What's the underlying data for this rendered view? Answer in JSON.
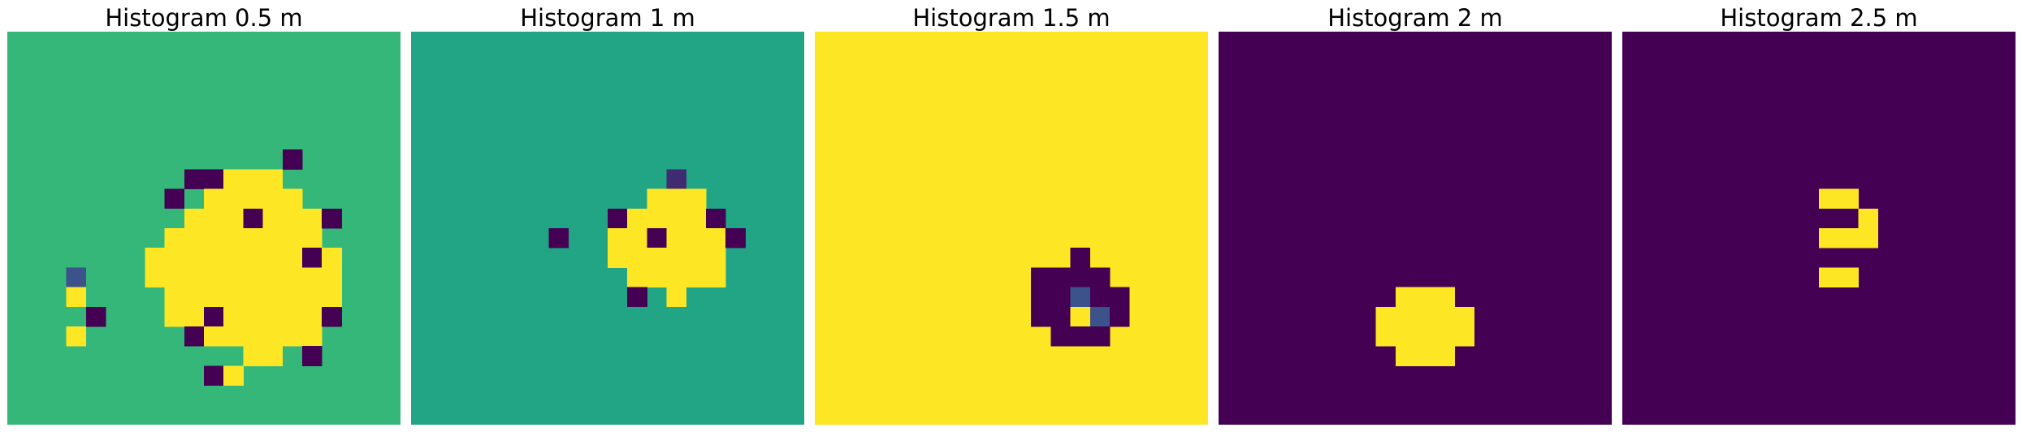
{
  "chart_data": [
    {
      "type": "heatmap",
      "title": "Histogram 0.5 m",
      "grid": false,
      "axes_visible": false,
      "colormap": "viridis",
      "colors": {
        "background": "#35b779",
        "high": "#fde725",
        "low": "#440154",
        "mid": "#3b528b"
      },
      "background_value": 0.7,
      "grid_size": [
        20,
        20
      ],
      "cells": [
        {
          "row": 6,
          "col": 14,
          "value": 0
        },
        {
          "row": 7,
          "col": 9,
          "value": 0
        },
        {
          "row": 7,
          "col": 10,
          "value": 0
        },
        {
          "row": 7,
          "col": 11,
          "value": 1
        },
        {
          "row": 7,
          "col": 12,
          "value": 1
        },
        {
          "row": 7,
          "col": 13,
          "value": 1
        },
        {
          "row": 8,
          "col": 8,
          "value": 0
        },
        {
          "row": 8,
          "col": 10,
          "value": 1
        },
        {
          "row": 8,
          "col": 11,
          "value": 1
        },
        {
          "row": 8,
          "col": 12,
          "value": 1
        },
        {
          "row": 8,
          "col": 13,
          "value": 1
        },
        {
          "row": 8,
          "col": 14,
          "value": 1
        },
        {
          "row": 9,
          "col": 9,
          "value": 1
        },
        {
          "row": 9,
          "col": 10,
          "value": 1
        },
        {
          "row": 9,
          "col": 11,
          "value": 1
        },
        {
          "row": 9,
          "col": 12,
          "value": 0
        },
        {
          "row": 9,
          "col": 13,
          "value": 1
        },
        {
          "row": 9,
          "col": 14,
          "value": 1
        },
        {
          "row": 9,
          "col": 15,
          "value": 1
        },
        {
          "row": 9,
          "col": 16,
          "value": 0
        },
        {
          "row": 10,
          "col": 8,
          "value": 1
        },
        {
          "row": 10,
          "col": 9,
          "value": 1
        },
        {
          "row": 10,
          "col": 10,
          "value": 1
        },
        {
          "row": 10,
          "col": 11,
          "value": 1
        },
        {
          "row": 10,
          "col": 12,
          "value": 1
        },
        {
          "row": 10,
          "col": 13,
          "value": 1
        },
        {
          "row": 10,
          "col": 14,
          "value": 1
        },
        {
          "row": 10,
          "col": 15,
          "value": 1
        },
        {
          "row": 11,
          "col": 7,
          "value": 1
        },
        {
          "row": 11,
          "col": 8,
          "value": 1
        },
        {
          "row": 11,
          "col": 9,
          "value": 1
        },
        {
          "row": 11,
          "col": 10,
          "value": 1
        },
        {
          "row": 11,
          "col": 11,
          "value": 1
        },
        {
          "row": 11,
          "col": 12,
          "value": 1
        },
        {
          "row": 11,
          "col": 13,
          "value": 1
        },
        {
          "row": 11,
          "col": 14,
          "value": 1
        },
        {
          "row": 11,
          "col": 15,
          "value": 0
        },
        {
          "row": 11,
          "col": 16,
          "value": 1
        },
        {
          "row": 12,
          "col": 3,
          "value": 0.2
        },
        {
          "row": 12,
          "col": 7,
          "value": 1
        },
        {
          "row": 12,
          "col": 8,
          "value": 1
        },
        {
          "row": 12,
          "col": 9,
          "value": 1
        },
        {
          "row": 12,
          "col": 10,
          "value": 1
        },
        {
          "row": 12,
          "col": 11,
          "value": 1
        },
        {
          "row": 12,
          "col": 12,
          "value": 1
        },
        {
          "row": 12,
          "col": 13,
          "value": 1
        },
        {
          "row": 12,
          "col": 14,
          "value": 1
        },
        {
          "row": 12,
          "col": 15,
          "value": 1
        },
        {
          "row": 12,
          "col": 16,
          "value": 1
        },
        {
          "row": 13,
          "col": 3,
          "value": 1
        },
        {
          "row": 13,
          "col": 8,
          "value": 1
        },
        {
          "row": 13,
          "col": 9,
          "value": 1
        },
        {
          "row": 13,
          "col": 10,
          "value": 1
        },
        {
          "row": 13,
          "col": 11,
          "value": 1
        },
        {
          "row": 13,
          "col": 12,
          "value": 1
        },
        {
          "row": 13,
          "col": 13,
          "value": 1
        },
        {
          "row": 13,
          "col": 14,
          "value": 1
        },
        {
          "row": 13,
          "col": 15,
          "value": 1
        },
        {
          "row": 13,
          "col": 16,
          "value": 1
        },
        {
          "row": 14,
          "col": 4,
          "value": 0
        },
        {
          "row": 14,
          "col": 8,
          "value": 1
        },
        {
          "row": 14,
          "col": 9,
          "value": 1
        },
        {
          "row": 14,
          "col": 10,
          "value": 0
        },
        {
          "row": 14,
          "col": 11,
          "value": 1
        },
        {
          "row": 14,
          "col": 12,
          "value": 1
        },
        {
          "row": 14,
          "col": 13,
          "value": 1
        },
        {
          "row": 14,
          "col": 14,
          "value": 1
        },
        {
          "row": 14,
          "col": 15,
          "value": 1
        },
        {
          "row": 14,
          "col": 16,
          "value": 0
        },
        {
          "row": 15,
          "col": 3,
          "value": 1
        },
        {
          "row": 15,
          "col": 9,
          "value": 0
        },
        {
          "row": 15,
          "col": 10,
          "value": 1
        },
        {
          "row": 15,
          "col": 11,
          "value": 1
        },
        {
          "row": 15,
          "col": 12,
          "value": 1
        },
        {
          "row": 15,
          "col": 13,
          "value": 1
        },
        {
          "row": 15,
          "col": 14,
          "value": 1
        },
        {
          "row": 15,
          "col": 15,
          "value": 1
        },
        {
          "row": 16,
          "col": 12,
          "value": 1
        },
        {
          "row": 16,
          "col": 13,
          "value": 1
        },
        {
          "row": 16,
          "col": 15,
          "value": 0
        },
        {
          "row": 17,
          "col": 10,
          "value": 0
        },
        {
          "row": 17,
          "col": 11,
          "value": 1
        }
      ]
    },
    {
      "type": "heatmap",
      "title": "Histogram 1 m",
      "grid": false,
      "axes_visible": false,
      "colormap": "viridis",
      "colors": {
        "background": "#21a585",
        "high": "#fde725",
        "low": "#440154",
        "mid": "#443a83"
      },
      "background_value": 0.6,
      "grid_size": [
        20,
        20
      ],
      "cells": [
        {
          "row": 7,
          "col": 13,
          "value": 0.1
        },
        {
          "row": 8,
          "col": 12,
          "value": 1
        },
        {
          "row": 8,
          "col": 13,
          "value": 1
        },
        {
          "row": 8,
          "col": 14,
          "value": 1
        },
        {
          "row": 9,
          "col": 10,
          "value": 0
        },
        {
          "row": 9,
          "col": 11,
          "value": 1
        },
        {
          "row": 9,
          "col": 12,
          "value": 1
        },
        {
          "row": 9,
          "col": 13,
          "value": 1
        },
        {
          "row": 9,
          "col": 14,
          "value": 1
        },
        {
          "row": 9,
          "col": 15,
          "value": 0
        },
        {
          "row": 10,
          "col": 7,
          "value": 0
        },
        {
          "row": 10,
          "col": 10,
          "value": 1
        },
        {
          "row": 10,
          "col": 11,
          "value": 1
        },
        {
          "row": 10,
          "col": 12,
          "value": 0
        },
        {
          "row": 10,
          "col": 13,
          "value": 1
        },
        {
          "row": 10,
          "col": 14,
          "value": 1
        },
        {
          "row": 10,
          "col": 15,
          "value": 1
        },
        {
          "row": 10,
          "col": 16,
          "value": 0
        },
        {
          "row": 11,
          "col": 10,
          "value": 1
        },
        {
          "row": 11,
          "col": 11,
          "value": 1
        },
        {
          "row": 11,
          "col": 12,
          "value": 1
        },
        {
          "row": 11,
          "col": 13,
          "value": 1
        },
        {
          "row": 11,
          "col": 14,
          "value": 1
        },
        {
          "row": 11,
          "col": 15,
          "value": 1
        },
        {
          "row": 12,
          "col": 11,
          "value": 1
        },
        {
          "row": 12,
          "col": 12,
          "value": 1
        },
        {
          "row": 12,
          "col": 13,
          "value": 1
        },
        {
          "row": 12,
          "col": 14,
          "value": 1
        },
        {
          "row": 12,
          "col": 15,
          "value": 1
        },
        {
          "row": 13,
          "col": 11,
          "value": 0
        },
        {
          "row": 13,
          "col": 13,
          "value": 1
        }
      ]
    },
    {
      "type": "heatmap",
      "title": "Histogram 1.5 m",
      "grid": false,
      "axes_visible": false,
      "colormap": "viridis",
      "colors": {
        "background": "#fde725",
        "high": "#fde725",
        "low": "#440154",
        "mid": "#3b528b"
      },
      "background_value": 1,
      "grid_size": [
        20,
        20
      ],
      "cells": [
        {
          "row": 11,
          "col": 13,
          "value": 0
        },
        {
          "row": 12,
          "col": 11,
          "value": 0
        },
        {
          "row": 12,
          "col": 12,
          "value": 0
        },
        {
          "row": 12,
          "col": 13,
          "value": 0
        },
        {
          "row": 12,
          "col": 14,
          "value": 0
        },
        {
          "row": 13,
          "col": 11,
          "value": 0
        },
        {
          "row": 13,
          "col": 12,
          "value": 0
        },
        {
          "row": 13,
          "col": 13,
          "value": 0.2
        },
        {
          "row": 13,
          "col": 14,
          "value": 0
        },
        {
          "row": 13,
          "col": 15,
          "value": 0
        },
        {
          "row": 14,
          "col": 11,
          "value": 0
        },
        {
          "row": 14,
          "col": 12,
          "value": 0
        },
        {
          "row": 14,
          "col": 13,
          "value": 1
        },
        {
          "row": 14,
          "col": 14,
          "value": 0.2
        },
        {
          "row": 14,
          "col": 15,
          "value": 0
        },
        {
          "row": 15,
          "col": 12,
          "value": 0
        },
        {
          "row": 15,
          "col": 13,
          "value": 0
        },
        {
          "row": 15,
          "col": 14,
          "value": 0
        }
      ]
    },
    {
      "type": "heatmap",
      "title": "Histogram 2 m",
      "grid": false,
      "axes_visible": false,
      "colormap": "viridis",
      "colors": {
        "background": "#440154",
        "high": "#fde725"
      },
      "background_value": 0,
      "grid_size": [
        20,
        20
      ],
      "cells": [
        {
          "row": 13,
          "col": 9,
          "value": 1
        },
        {
          "row": 13,
          "col": 10,
          "value": 1
        },
        {
          "row": 13,
          "col": 11,
          "value": 1
        },
        {
          "row": 14,
          "col": 8,
          "value": 1
        },
        {
          "row": 14,
          "col": 9,
          "value": 1
        },
        {
          "row": 14,
          "col": 10,
          "value": 1
        },
        {
          "row": 14,
          "col": 11,
          "value": 1
        },
        {
          "row": 14,
          "col": 12,
          "value": 1
        },
        {
          "row": 15,
          "col": 8,
          "value": 1
        },
        {
          "row": 15,
          "col": 9,
          "value": 1
        },
        {
          "row": 15,
          "col": 10,
          "value": 1
        },
        {
          "row": 15,
          "col": 11,
          "value": 1
        },
        {
          "row": 15,
          "col": 12,
          "value": 1
        },
        {
          "row": 16,
          "col": 9,
          "value": 1
        },
        {
          "row": 16,
          "col": 10,
          "value": 1
        },
        {
          "row": 16,
          "col": 11,
          "value": 1
        }
      ]
    },
    {
      "type": "heatmap",
      "title": "Histogram 2.5 m",
      "grid": false,
      "axes_visible": false,
      "colormap": "viridis",
      "colors": {
        "background": "#440154",
        "high": "#fde725"
      },
      "background_value": 0,
      "grid_size": [
        20,
        20
      ],
      "cells": [
        {
          "row": 8,
          "col": 10,
          "value": 1
        },
        {
          "row": 8,
          "col": 11,
          "value": 1
        },
        {
          "row": 9,
          "col": 12,
          "value": 1
        },
        {
          "row": 10,
          "col": 10,
          "value": 1
        },
        {
          "row": 10,
          "col": 11,
          "value": 1
        },
        {
          "row": 10,
          "col": 12,
          "value": 1
        },
        {
          "row": 12,
          "col": 10,
          "value": 1
        },
        {
          "row": 12,
          "col": 11,
          "value": 1
        }
      ]
    }
  ]
}
